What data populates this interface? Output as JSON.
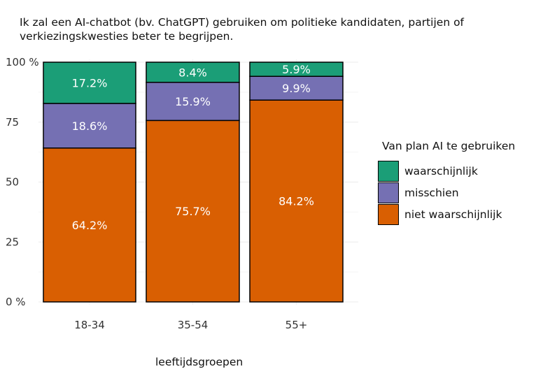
{
  "title": {
    "line1": "Ik zal een AI-chatbot (bv. ChatGPT) gebruiken om politieke kandidaten, partijen of",
    "line2": "verkiezingskwesties beter te begrijpen."
  },
  "chart_data": {
    "type": "bar",
    "stacked": true,
    "title": "Ik zal een AI-chatbot (bv. ChatGPT) gebruiken om politieke kandidaten, partijen of verkiezingskwesties beter te begrijpen.",
    "xlabel": "leeftijdsgroepen",
    "ylabel": "",
    "ylim": [
      0,
      100
    ],
    "yticks": [
      "0 %",
      "25",
      "50",
      "75",
      "100 %"
    ],
    "categories": [
      "18-34",
      "35-54",
      "55+"
    ],
    "series": [
      {
        "name": "niet waarschijnlijk",
        "color": "#d95f02",
        "values": [
          64.2,
          75.7,
          84.2
        ],
        "labels": [
          "64.2%",
          "75.7%",
          "84.2%"
        ]
      },
      {
        "name": "misschien",
        "color": "#7570b3",
        "values": [
          18.6,
          15.9,
          9.9
        ],
        "labels": [
          "18.6%",
          "15.9%",
          "9.9%"
        ]
      },
      {
        "name": "waarschijnlijk",
        "color": "#1b9e77",
        "values": [
          17.2,
          8.4,
          5.9
        ],
        "labels": [
          "17.2%",
          "8.4%",
          "5.9%"
        ]
      }
    ],
    "legend": {
      "title": "Van plan AI te gebruiken",
      "position": "right",
      "items": [
        "waarschijnlijk",
        "misschien",
        "niet waarschijnlijk"
      ]
    }
  }
}
